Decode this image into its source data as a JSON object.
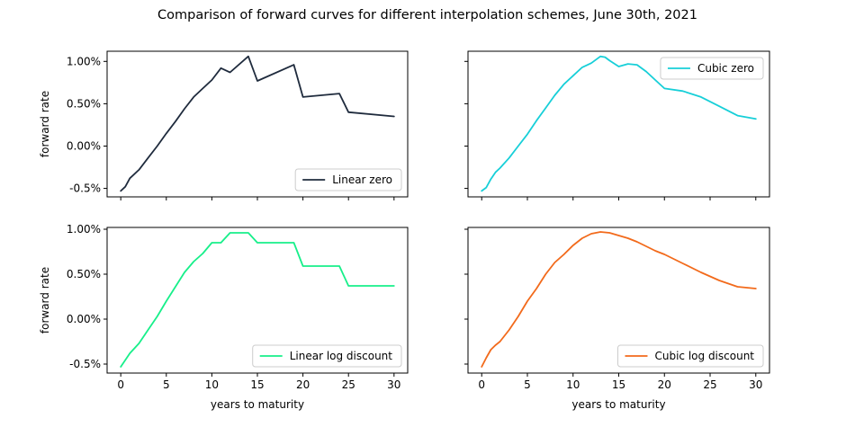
{
  "figure": {
    "title": "Comparison of forward curves for different interpolation schemes, June 30th, 2021"
  },
  "chart_data": [
    {
      "type": "line",
      "xlabel": "",
      "ylabel": "forward rate",
      "xlim": [
        -1.5,
        31.5
      ],
      "ylim": [
        -0.6,
        1.12
      ],
      "xticks": [
        0,
        5,
        10,
        15,
        20,
        25,
        30
      ],
      "yticks": [
        -0.5,
        0.0,
        0.5,
        1.0
      ],
      "ytick_labels": [
        "-0.5%",
        "0.00%",
        "0.50%",
        "1.00%"
      ],
      "legend_position": "lower right",
      "grid": false,
      "series": [
        {
          "name": "Linear zero",
          "color": "#1f2b3d",
          "x": [
            0,
            0.5,
            1,
            2,
            3,
            4,
            5,
            6,
            7,
            8,
            9,
            10,
            11,
            12,
            14,
            15,
            19,
            20,
            24,
            25,
            30
          ],
          "y": [
            -0.53,
            -0.48,
            -0.38,
            -0.28,
            -0.14,
            0.0,
            0.15,
            0.29,
            0.44,
            0.58,
            0.68,
            0.78,
            0.92,
            0.87,
            1.06,
            0.77,
            0.96,
            0.58,
            0.62,
            0.4,
            0.35
          ]
        }
      ]
    },
    {
      "type": "line",
      "xlabel": "",
      "ylabel": "",
      "xlim": [
        -1.5,
        31.5
      ],
      "ylim": [
        -0.6,
        1.12
      ],
      "xticks": [
        0,
        5,
        10,
        15,
        20,
        25,
        30
      ],
      "yticks": [
        -0.5,
        0.0,
        0.5,
        1.0
      ],
      "legend_position": "upper right",
      "grid": false,
      "series": [
        {
          "name": "Cubic zero",
          "color": "#17cfd8",
          "x": [
            0,
            0.5,
            1,
            1.5,
            2,
            3,
            4,
            5,
            6,
            7,
            8,
            9,
            10,
            11,
            12,
            13,
            13.5,
            14,
            15,
            16,
            17,
            18,
            19,
            20,
            22,
            24,
            26,
            28,
            30
          ],
          "y": [
            -0.53,
            -0.49,
            -0.39,
            -0.31,
            -0.26,
            -0.14,
            0.0,
            0.14,
            0.3,
            0.45,
            0.6,
            0.73,
            0.83,
            0.93,
            0.98,
            1.06,
            1.05,
            1.01,
            0.94,
            0.97,
            0.96,
            0.88,
            0.78,
            0.68,
            0.65,
            0.58,
            0.47,
            0.36,
            0.32
          ]
        }
      ]
    },
    {
      "type": "line",
      "xlabel": "years to maturity",
      "ylabel": "forward rate",
      "xlim": [
        -1.5,
        31.5
      ],
      "ylim": [
        -0.6,
        1.02
      ],
      "xticks": [
        0,
        5,
        10,
        15,
        20,
        25,
        30
      ],
      "yticks": [
        -0.5,
        0.0,
        0.5,
        1.0
      ],
      "ytick_labels": [
        "-0.5%",
        "0.00%",
        "0.50%",
        "1.00%"
      ],
      "legend_position": "lower right",
      "grid": false,
      "series": [
        {
          "name": "Linear log discount",
          "color": "#17ef8a",
          "x": [
            0,
            1,
            2,
            3,
            4,
            5,
            6,
            7,
            8,
            9,
            10,
            11,
            12,
            14,
            15,
            19,
            20,
            24,
            25,
            30
          ],
          "y": [
            -0.53,
            -0.38,
            -0.27,
            -0.12,
            0.03,
            0.2,
            0.36,
            0.52,
            0.64,
            0.73,
            0.85,
            0.85,
            0.96,
            0.96,
            0.85,
            0.85,
            0.59,
            0.59,
            0.37,
            0.37
          ]
        }
      ]
    },
    {
      "type": "line",
      "xlabel": "years to maturity",
      "ylabel": "",
      "xlim": [
        -1.5,
        31.5
      ],
      "ylim": [
        -0.6,
        1.02
      ],
      "xticks": [
        0,
        5,
        10,
        15,
        20,
        25,
        30
      ],
      "yticks": [
        -0.5,
        0.0,
        0.5,
        1.0
      ],
      "legend_position": "lower right",
      "grid": false,
      "series": [
        {
          "name": "Cubic log discount",
          "color": "#f26a1b",
          "x": [
            0,
            0.5,
            1,
            1.5,
            2,
            3,
            4,
            5,
            6,
            7,
            8,
            9,
            10,
            11,
            12,
            13,
            14,
            15,
            16,
            17,
            18,
            19,
            20,
            22,
            24,
            26,
            28,
            29,
            30
          ],
          "y": [
            -0.53,
            -0.43,
            -0.34,
            -0.29,
            -0.25,
            -0.12,
            0.03,
            0.2,
            0.34,
            0.5,
            0.63,
            0.72,
            0.82,
            0.9,
            0.95,
            0.97,
            0.96,
            0.93,
            0.9,
            0.86,
            0.81,
            0.76,
            0.72,
            0.62,
            0.52,
            0.43,
            0.36,
            0.35,
            0.34
          ]
        }
      ]
    }
  ]
}
